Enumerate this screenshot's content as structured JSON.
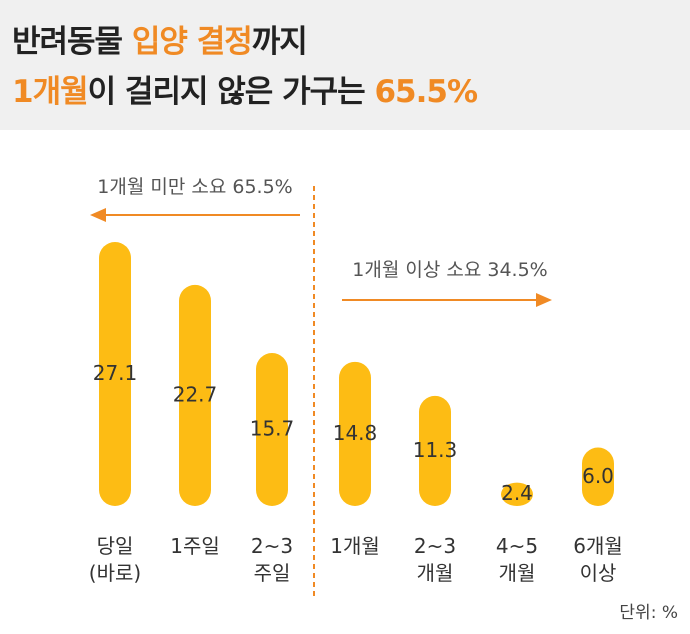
{
  "header": {
    "line1": {
      "p1": "반려동물 ",
      "h1": "입양 결정",
      "p2": "까지"
    },
    "line2": {
      "h1": "1개월",
      "p1": "이 걸리지 않은 가구는 ",
      "h2": "65.5%"
    }
  },
  "colors": {
    "bar": "#fdbc14",
    "accent": "#f08a24",
    "header_bg": "#f0f0f0",
    "text": "#333333"
  },
  "unit_label": "단위: %",
  "chart_data": {
    "type": "bar",
    "categories": [
      [
        "당일",
        "(바로)"
      ],
      [
        "1주일"
      ],
      [
        "2~3",
        "주일"
      ],
      [
        "1개월"
      ],
      [
        "2~3",
        "개월"
      ],
      [
        "4~5",
        "개월"
      ],
      [
        "6개월",
        "이상"
      ]
    ],
    "values": [
      27.1,
      22.7,
      15.7,
      14.8,
      11.3,
      2.4,
      6.0
    ],
    "value_labels": [
      "27.1",
      "22.7",
      "15.7",
      "14.8",
      "11.3",
      "2.4",
      "6.0"
    ],
    "ylim": [
      0,
      27.1
    ],
    "annotations": [
      {
        "text": "1개월 미만 소요 65.5%",
        "direction": "left"
      },
      {
        "text": "1개월 이상 소요 34.5%",
        "direction": "right"
      }
    ],
    "divider": "between 2~3 주일 and 1개월"
  }
}
